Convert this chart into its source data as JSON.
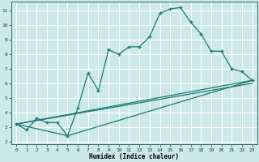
{
  "xlabel": "Humidex (Indice chaleur)",
  "ylabel": "",
  "bg_color": "#cce8e8",
  "grid_color": "#ffffff",
  "line_color": "#1a7a6e",
  "xlim": [
    -0.5,
    23.5
  ],
  "ylim": [
    1.8,
    11.6
  ],
  "xticks": [
    0,
    1,
    2,
    3,
    4,
    5,
    6,
    7,
    8,
    9,
    10,
    11,
    12,
    13,
    14,
    15,
    16,
    17,
    18,
    19,
    20,
    21,
    22,
    23
  ],
  "yticks": [
    2,
    3,
    4,
    5,
    6,
    7,
    8,
    9,
    10,
    11
  ],
  "series1_x": [
    0,
    1,
    2,
    3,
    4,
    5,
    6,
    7,
    8,
    9,
    10,
    11,
    12,
    13,
    14,
    15,
    16,
    17,
    18,
    19,
    20,
    21,
    22,
    23
  ],
  "series1_y": [
    3.2,
    2.8,
    3.6,
    3.3,
    3.3,
    2.4,
    4.3,
    6.7,
    5.5,
    8.3,
    8.0,
    8.5,
    8.5,
    9.2,
    10.8,
    11.1,
    11.2,
    10.2,
    9.4,
    8.2,
    8.2,
    7.0,
    6.8,
    6.2
  ],
  "series2_x": [
    0,
    23
  ],
  "series2_y": [
    3.2,
    6.2
  ],
  "series3_x": [
    0,
    5,
    23
  ],
  "series3_y": [
    3.2,
    2.4,
    6.2
  ],
  "series4_x": [
    0,
    23
  ],
  "series4_y": [
    3.2,
    6.0
  ]
}
